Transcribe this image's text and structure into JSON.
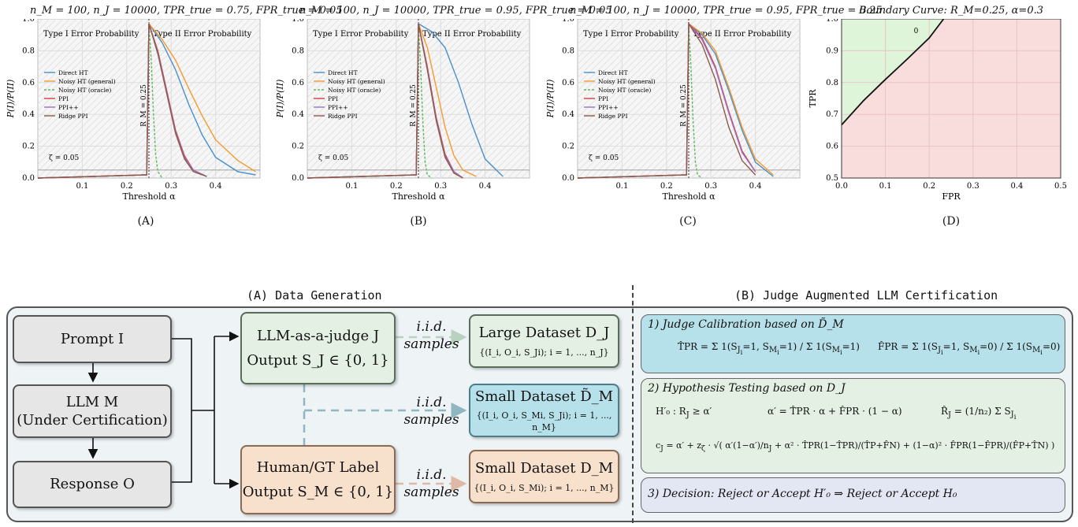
{
  "charts": {
    "line_legend": [
      "Direct HT",
      "Noisy HT (general)",
      "Noisy HT (oracle)",
      "PPI",
      "PPI++",
      "Ridge PPI"
    ],
    "series_colors": {
      "Direct HT": "#4a8fc9",
      "Noisy HT (general)": "#f59a2d",
      "Noisy HT (oracle)": "#5cb85c",
      "PPI": "#d43c3c",
      "PPI++": "#9b6fc4",
      "Ridge PPI": "#8c5a4a"
    },
    "region_left": "Type I Error Probability",
    "region_right": "Type II Error Probability",
    "rm_label": "R_M = 0.25",
    "zeta_label": "ζ = 0.05",
    "xlabel": "Threshold α",
    "ylabel": "P(I)/P(II)",
    "x_ticks": [
      "0.1",
      "0.2",
      "0.3",
      "0.4"
    ],
    "y_ticks": [
      "0.0",
      "0.2",
      "0.4",
      "0.6",
      "0.8",
      "1.0"
    ]
  },
  "chart_data": [
    {
      "type": "line",
      "caption": "(A)",
      "title": "n_M = 100, n_J = 10000, TPR_true = 0.75, FPR_true = 0.05",
      "xlim": [
        0.0,
        0.5
      ],
      "ylim": [
        0.0,
        1.0
      ],
      "series": [
        {
          "name": "Direct HT",
          "x": [
            0.25,
            0.28,
            0.31,
            0.34,
            0.37,
            0.4,
            0.45,
            0.49
          ],
          "y": [
            0.97,
            0.85,
            0.68,
            0.46,
            0.27,
            0.13,
            0.04,
            0.02
          ]
        },
        {
          "name": "Noisy HT (general)",
          "x": [
            0.25,
            0.28,
            0.31,
            0.34,
            0.37,
            0.4,
            0.45,
            0.49
          ],
          "y": [
            0.97,
            0.87,
            0.74,
            0.56,
            0.39,
            0.24,
            0.11,
            0.04
          ]
        },
        {
          "name": "Noisy HT (oracle)",
          "x": [
            0.25,
            0.255,
            0.26,
            0.265,
            0.27,
            0.28
          ],
          "y": [
            0.96,
            0.75,
            0.42,
            0.15,
            0.04,
            0.0
          ]
        },
        {
          "name": "PPI",
          "x": [
            0.25,
            0.27,
            0.29,
            0.31,
            0.33,
            0.35,
            0.38
          ],
          "y": [
            0.97,
            0.8,
            0.55,
            0.3,
            0.14,
            0.05,
            0.01
          ]
        },
        {
          "name": "PPI++",
          "x": [
            0.25,
            0.27,
            0.29,
            0.31,
            0.33,
            0.35,
            0.38
          ],
          "y": [
            0.97,
            0.79,
            0.54,
            0.29,
            0.13,
            0.05,
            0.01
          ]
        },
        {
          "name": "Ridge PPI",
          "x": [
            0.25,
            0.27,
            0.29,
            0.31,
            0.33,
            0.35,
            0.38
          ],
          "y": [
            0.97,
            0.78,
            0.53,
            0.28,
            0.12,
            0.04,
            0.01
          ]
        }
      ]
    },
    {
      "type": "line",
      "caption": "(B)",
      "title": "n_M = 100, n_J = 10000, TPR_true = 0.95, FPR_true = 0.05",
      "xlim": [
        0.0,
        0.5
      ],
      "ylim": [
        0.0,
        1.0
      ],
      "series": [
        {
          "name": "Direct HT",
          "x": [
            0.25,
            0.28,
            0.31,
            0.34,
            0.37,
            0.4,
            0.44
          ],
          "y": [
            0.97,
            0.92,
            0.82,
            0.6,
            0.34,
            0.12,
            0.01
          ]
        },
        {
          "name": "Noisy HT (general)",
          "x": [
            0.25,
            0.27,
            0.29,
            0.31,
            0.33,
            0.35,
            0.38
          ],
          "y": [
            0.97,
            0.82,
            0.57,
            0.32,
            0.14,
            0.05,
            0.01
          ]
        },
        {
          "name": "Noisy HT (oracle)",
          "x": [
            0.25,
            0.255,
            0.26,
            0.265,
            0.27,
            0.28
          ],
          "y": [
            0.96,
            0.7,
            0.35,
            0.1,
            0.02,
            0.0
          ]
        },
        {
          "name": "PPI",
          "x": [
            0.25,
            0.27,
            0.29,
            0.31,
            0.33,
            0.35
          ],
          "y": [
            0.97,
            0.7,
            0.38,
            0.15,
            0.04,
            0.0
          ]
        },
        {
          "name": "PPI++",
          "x": [
            0.25,
            0.27,
            0.29,
            0.31,
            0.33,
            0.35
          ],
          "y": [
            0.97,
            0.69,
            0.37,
            0.14,
            0.04,
            0.0
          ]
        },
        {
          "name": "Ridge PPI",
          "x": [
            0.25,
            0.27,
            0.29,
            0.31,
            0.33,
            0.35
          ],
          "y": [
            0.97,
            0.68,
            0.36,
            0.13,
            0.03,
            0.0
          ]
        }
      ]
    },
    {
      "type": "line",
      "caption": "(C)",
      "title": "n_M = 100, n_J = 10000, TPR_true = 0.95, FPR_true = 0.25",
      "xlim": [
        0.0,
        0.5
      ],
      "ylim": [
        0.0,
        1.0
      ],
      "series": [
        {
          "name": "Direct HT",
          "x": [
            0.25,
            0.28,
            0.31,
            0.34,
            0.37,
            0.4,
            0.44
          ],
          "y": [
            0.97,
            0.9,
            0.78,
            0.55,
            0.3,
            0.1,
            0.01
          ]
        },
        {
          "name": "Noisy HT (general)",
          "x": [
            0.25,
            0.28,
            0.31,
            0.34,
            0.37,
            0.4,
            0.44
          ],
          "y": [
            0.97,
            0.91,
            0.8,
            0.57,
            0.32,
            0.12,
            0.02
          ]
        },
        {
          "name": "Noisy HT (oracle)",
          "x": [
            0.25,
            0.255,
            0.26,
            0.265,
            0.27,
            0.28
          ],
          "y": [
            0.96,
            0.7,
            0.35,
            0.1,
            0.02,
            0.0
          ]
        },
        {
          "name": "PPI",
          "x": [
            0.25,
            0.28,
            0.31,
            0.34,
            0.37,
            0.4
          ],
          "y": [
            0.97,
            0.88,
            0.7,
            0.42,
            0.17,
            0.04
          ]
        },
        {
          "name": "PPI++",
          "x": [
            0.25,
            0.28,
            0.31,
            0.34,
            0.37,
            0.4
          ],
          "y": [
            0.97,
            0.87,
            0.69,
            0.41,
            0.16,
            0.04
          ]
        },
        {
          "name": "Ridge PPI",
          "x": [
            0.25,
            0.28,
            0.31,
            0.34,
            0.37,
            0.4
          ],
          "y": [
            0.97,
            0.84,
            0.62,
            0.32,
            0.11,
            0.02
          ]
        }
      ]
    },
    {
      "type": "line",
      "caption": "(D)",
      "title": "Boundary Curve: R_M=0.25, α=0.3",
      "xlabel": "FPR",
      "ylabel": "TPR",
      "xlim": [
        0.0,
        0.5
      ],
      "ylim": [
        0.5,
        1.0
      ],
      "x_ticks": [
        "0.0",
        "0.1",
        "0.2",
        "0.3",
        "0.4",
        "0.5"
      ],
      "y_ticks": [
        "0.5",
        "0.6",
        "0.7",
        "0.8",
        "0.9",
        "1.0"
      ],
      "contour_label": "0",
      "series": [
        {
          "name": "boundary",
          "x": [
            0.0,
            0.05,
            0.1,
            0.15,
            0.2,
            0.233
          ],
          "y": [
            0.667,
            0.743,
            0.81,
            0.874,
            0.94,
            1.0
          ]
        }
      ]
    }
  ],
  "diagram": {
    "left_title": "(A) Data Generation",
    "right_title": "(B) Judge Augmented LLM Certification",
    "prompt": "Prompt I",
    "llm_line1": "LLM M",
    "llm_line2": "(Under Certification)",
    "response": "Response O",
    "judge_line1": "LLM-as-a-judge J",
    "judge_line2": "Output S_J ∈ {0, 1}",
    "human_line1": "Human/GT Label",
    "human_line2": "Output S_M ∈ {0, 1}",
    "samples_1": "i.i.d.",
    "samples_2": "samples",
    "large_title": "Large Dataset D_J",
    "large_set": "{(I_i, O_i, S_Ji); i = 1, ..., n_J}",
    "small_tilde_title": "Small Dataset D̃_M",
    "small_tilde_set": "{(I_i, O_i, S_Mi, S_Ji); i = 1, ..., n_M}",
    "small_title": "Small Dataset D_M",
    "small_set": "{(I_i, O_i, S_Mi); i = 1, ..., n_M}",
    "step1": "1) Judge Calibration based on D̃_M",
    "step2": "2) Hypothesis Testing based on D_J",
    "step3": "3) Decision:   Reject or Accept H′₀   ⇒   Reject or Accept H₀"
  }
}
